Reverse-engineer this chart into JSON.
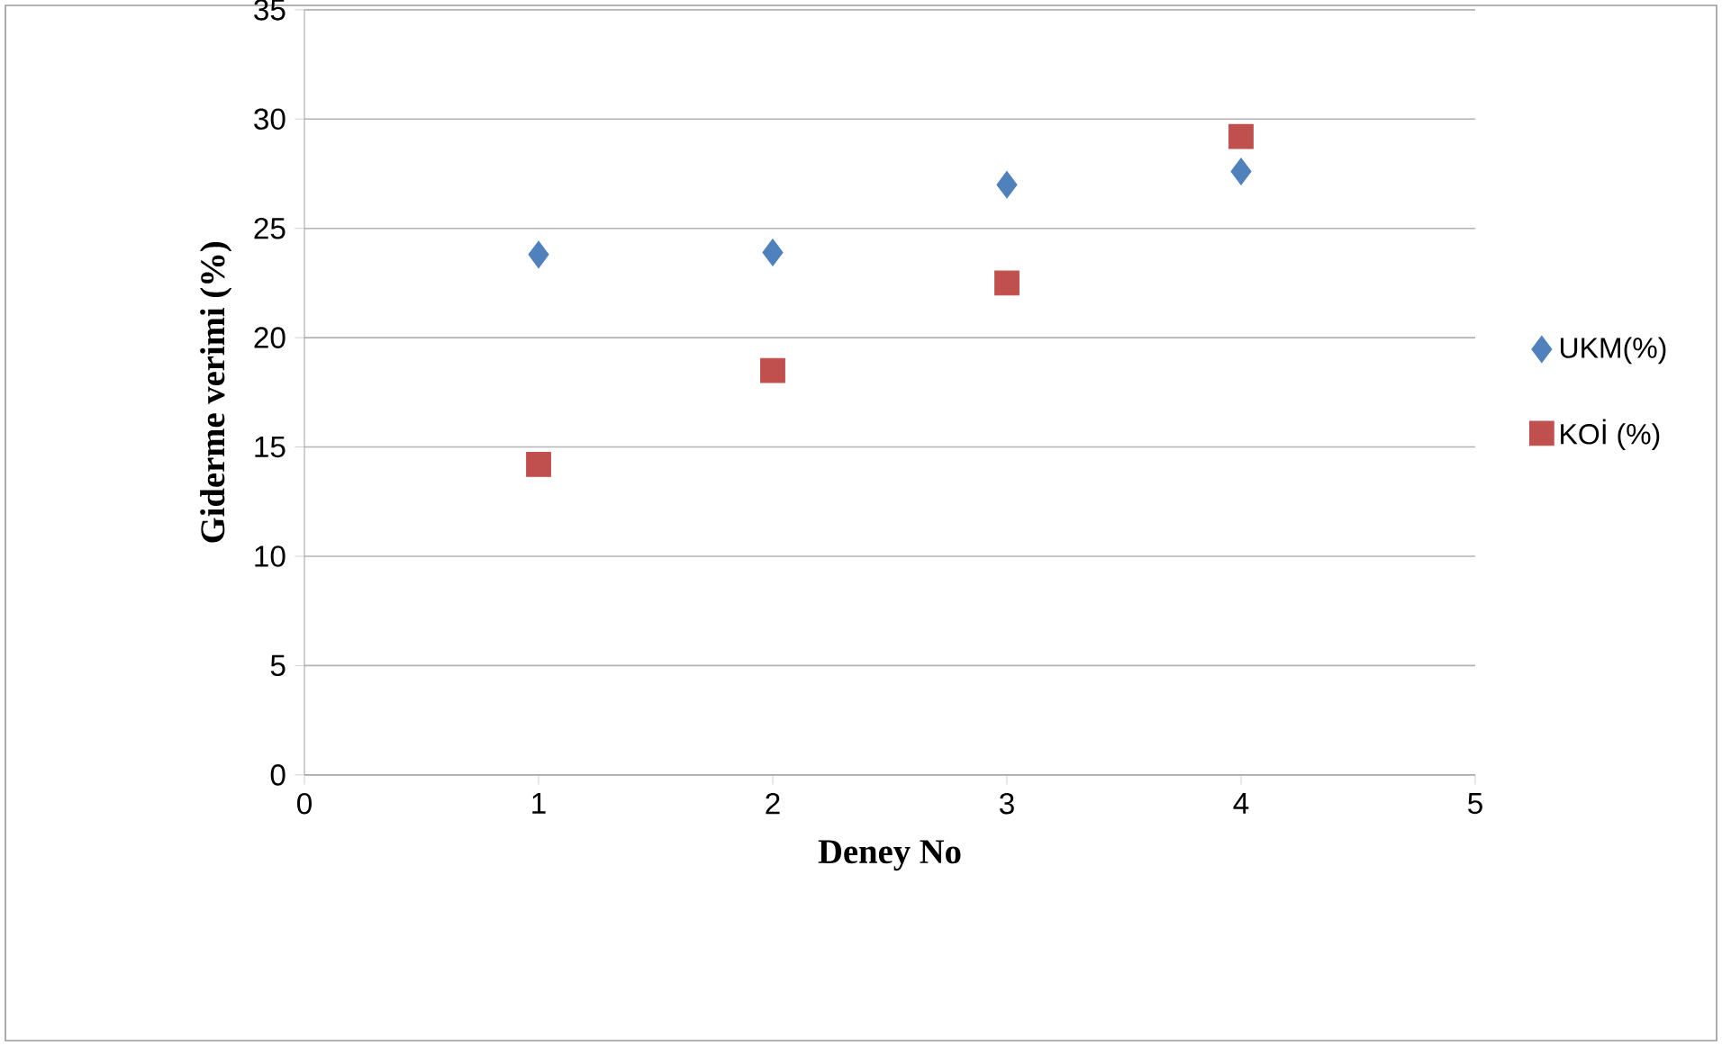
{
  "chart_data": {
    "type": "scatter",
    "xlabel": "Deney No",
    "ylabel": "Giderme verimi (%)",
    "x": [
      1,
      2,
      3,
      4
    ],
    "series": [
      {
        "name": "UKM(%)",
        "color": "#4f81bd",
        "marker": "diamond",
        "values": [
          23.8,
          23.9,
          27.0,
          27.6
        ]
      },
      {
        "name": "KOİ (%)",
        "color": "#c0504d",
        "marker": "square",
        "values": [
          14.2,
          18.5,
          22.5,
          29.2
        ]
      }
    ],
    "xlim": [
      0,
      5
    ],
    "xticks": [
      0,
      1,
      2,
      3,
      4,
      5
    ],
    "ylim": [
      0,
      35
    ],
    "yticks": [
      0,
      5,
      10,
      15,
      20,
      25,
      30,
      35
    ],
    "grid": "y",
    "legend": "right"
  }
}
